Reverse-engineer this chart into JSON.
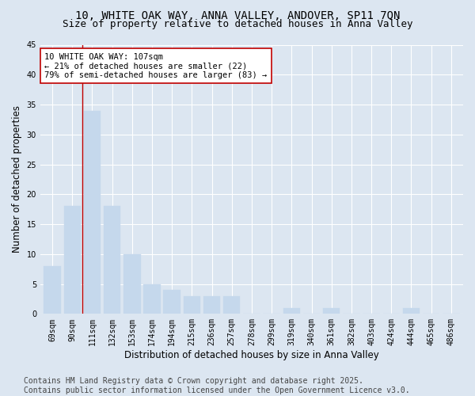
{
  "title_line1": "10, WHITE OAK WAY, ANNA VALLEY, ANDOVER, SP11 7QN",
  "title_line2": "Size of property relative to detached houses in Anna Valley",
  "xlabel": "Distribution of detached houses by size in Anna Valley",
  "ylabel": "Number of detached properties",
  "categories": [
    "69sqm",
    "90sqm",
    "111sqm",
    "132sqm",
    "153sqm",
    "174sqm",
    "194sqm",
    "215sqm",
    "236sqm",
    "257sqm",
    "278sqm",
    "299sqm",
    "319sqm",
    "340sqm",
    "361sqm",
    "382sqm",
    "403sqm",
    "424sqm",
    "444sqm",
    "465sqm",
    "486sqm"
  ],
  "values": [
    8,
    18,
    34,
    18,
    10,
    5,
    4,
    3,
    3,
    3,
    0,
    0,
    1,
    0,
    1,
    0,
    0,
    0,
    1,
    0,
    0
  ],
  "bar_color": "#c5d8ec",
  "bar_edge_color": "#c5d8ec",
  "highlight_line_color": "#c00000",
  "highlight_line_xindex": 2,
  "ylim": [
    0,
    45
  ],
  "yticks": [
    0,
    5,
    10,
    15,
    20,
    25,
    30,
    35,
    40,
    45
  ],
  "annotation_text": "10 WHITE OAK WAY: 107sqm\n← 21% of detached houses are smaller (22)\n79% of semi-detached houses are larger (83) →",
  "annotation_box_facecolor": "#ffffff",
  "annotation_box_edgecolor": "#c00000",
  "footer_line1": "Contains HM Land Registry data © Crown copyright and database right 2025.",
  "footer_line2": "Contains public sector information licensed under the Open Government Licence v3.0.",
  "background_color": "#dce6f1",
  "plot_bg_color": "#dce6f1",
  "grid_color": "#ffffff",
  "title_fontsize": 10,
  "subtitle_fontsize": 9,
  "tick_fontsize": 7,
  "label_fontsize": 8.5,
  "footer_fontsize": 7,
  "annotation_fontsize": 7.5
}
